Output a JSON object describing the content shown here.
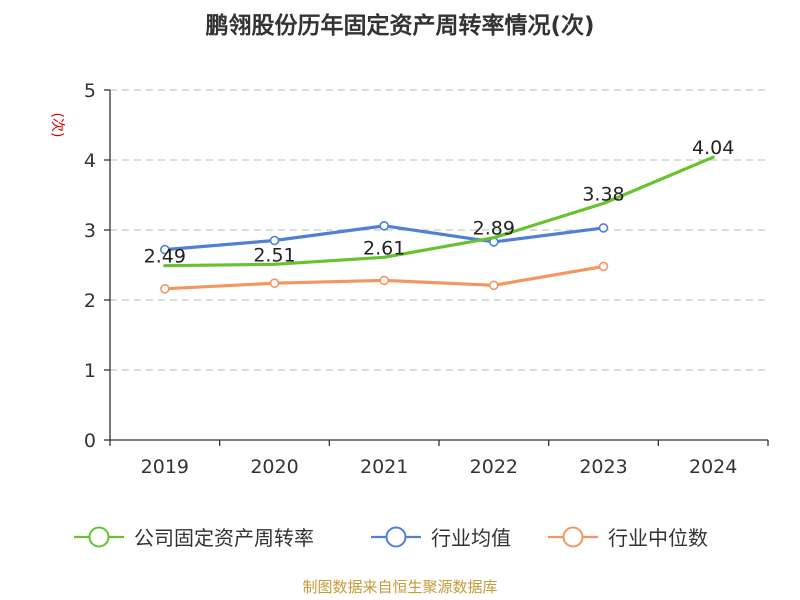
{
  "chart_data": {
    "type": "line",
    "title": "鹏翎股份历年固定资产周转率情况(次)",
    "ylabel": "(次)",
    "xlabel": "",
    "categories": [
      "2019",
      "2020",
      "2021",
      "2022",
      "2023",
      "2024"
    ],
    "ylim": [
      0,
      5
    ],
    "yticks": [
      0,
      1,
      2,
      3,
      4,
      5
    ],
    "grid": true,
    "legend_position": "bottom",
    "series": [
      {
        "name": "公司固定资产周转率",
        "color": "#66c22e",
        "values": [
          2.49,
          2.51,
          2.61,
          2.89,
          3.38,
          4.04
        ],
        "labels": [
          "2.49",
          "2.51",
          "2.61",
          "2.89",
          "3.38",
          "4.04"
        ]
      },
      {
        "name": "行业均值",
        "color": "#4f7fd6",
        "values": [
          2.72,
          2.85,
          3.06,
          2.83,
          3.03,
          null
        ]
      },
      {
        "name": "行业中位数",
        "color": "#f59560",
        "values": [
          2.16,
          2.24,
          2.28,
          2.21,
          2.48,
          null
        ]
      }
    ]
  },
  "source": "制图数据来自恒生聚源数据库"
}
